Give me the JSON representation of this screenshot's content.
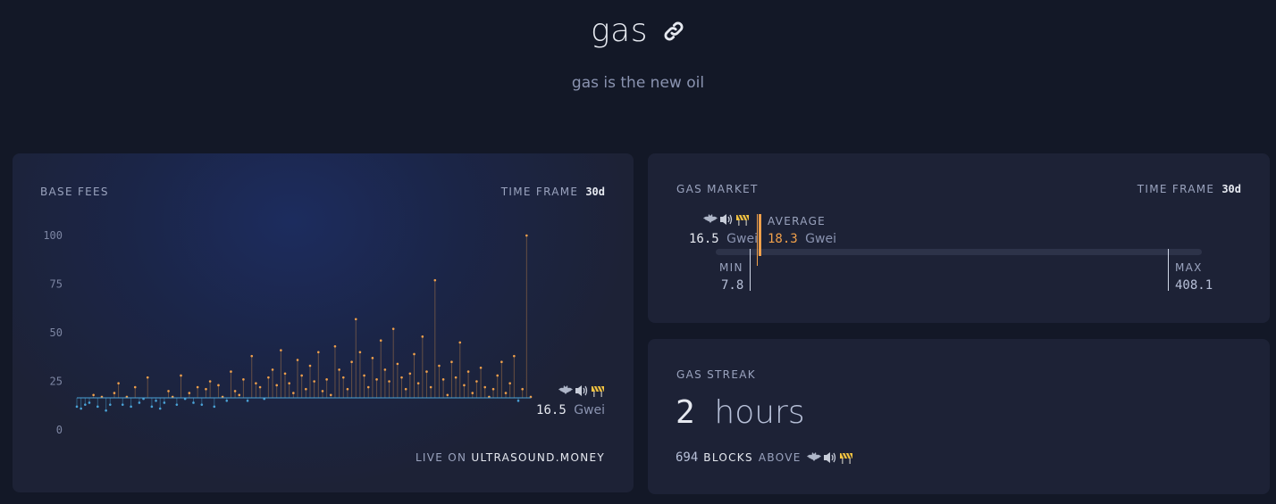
{
  "header": {
    "title": "gas",
    "subtitle": "gas is the new oil"
  },
  "base_fees": {
    "title": "BASE FEES",
    "timeframe_label": "TIME FRAME",
    "timeframe_value": "30d",
    "current_value": "16.5",
    "current_unit": "Gwei",
    "live_on_label": "LIVE ON",
    "live_on_link": "ULTRASOUND.MONEY",
    "icons": [
      "bat-icon",
      "speaker-icon",
      "construction-barrier-icon"
    ]
  },
  "gas_market": {
    "title": "GAS MARKET",
    "timeframe_label": "TIME FRAME",
    "timeframe_value": "30d",
    "current_value": "16.5",
    "current_unit": "Gwei",
    "average_label": "AVERAGE",
    "average_value": "18.3",
    "average_unit": "Gwei",
    "min_label": "MIN",
    "min_value": "7.8",
    "max_label": "MAX",
    "max_value": "408.1",
    "accent_color": "#f0a04b"
  },
  "gas_streak": {
    "title": "GAS STREAK",
    "value": "2",
    "value_unit": "hours",
    "blocks": "694",
    "blocks_label": "BLOCKS",
    "above_label": "ABOVE"
  },
  "chart_data": {
    "type": "scatter",
    "title": "BASE FEES",
    "ylim": [
      0,
      100
    ],
    "yticks": [
      "100",
      "75",
      "50",
      "25",
      "0"
    ],
    "current_line": 16.5,
    "colors": {
      "above": "#f0a04b",
      "below": "#4aa3d8",
      "line": "#4aa3d8"
    },
    "series": [
      {
        "values": [
          12,
          11,
          13,
          14,
          18,
          12,
          17,
          10,
          13,
          19,
          24,
          13,
          17,
          12,
          22,
          14,
          16,
          27,
          12,
          15,
          11,
          14,
          20,
          17,
          13,
          28,
          16,
          19,
          14,
          22,
          13,
          21,
          25,
          12,
          23,
          17,
          15,
          30,
          20,
          18,
          26,
          15,
          38,
          24,
          22,
          16,
          27,
          31,
          23,
          41,
          29,
          24,
          19,
          36,
          28,
          21,
          33,
          25,
          40,
          20,
          26,
          18,
          43,
          31,
          27,
          21,
          35,
          57,
          40,
          28,
          22,
          37,
          26,
          46,
          31,
          25,
          52,
          34,
          27,
          21,
          29,
          39,
          24,
          48,
          30,
          22,
          77,
          33,
          26,
          18,
          35,
          27,
          45,
          23,
          30,
          19,
          25,
          32,
          22,
          17,
          21,
          28,
          35,
          19,
          24,
          38,
          15,
          21,
          100,
          17
        ]
      }
    ]
  }
}
